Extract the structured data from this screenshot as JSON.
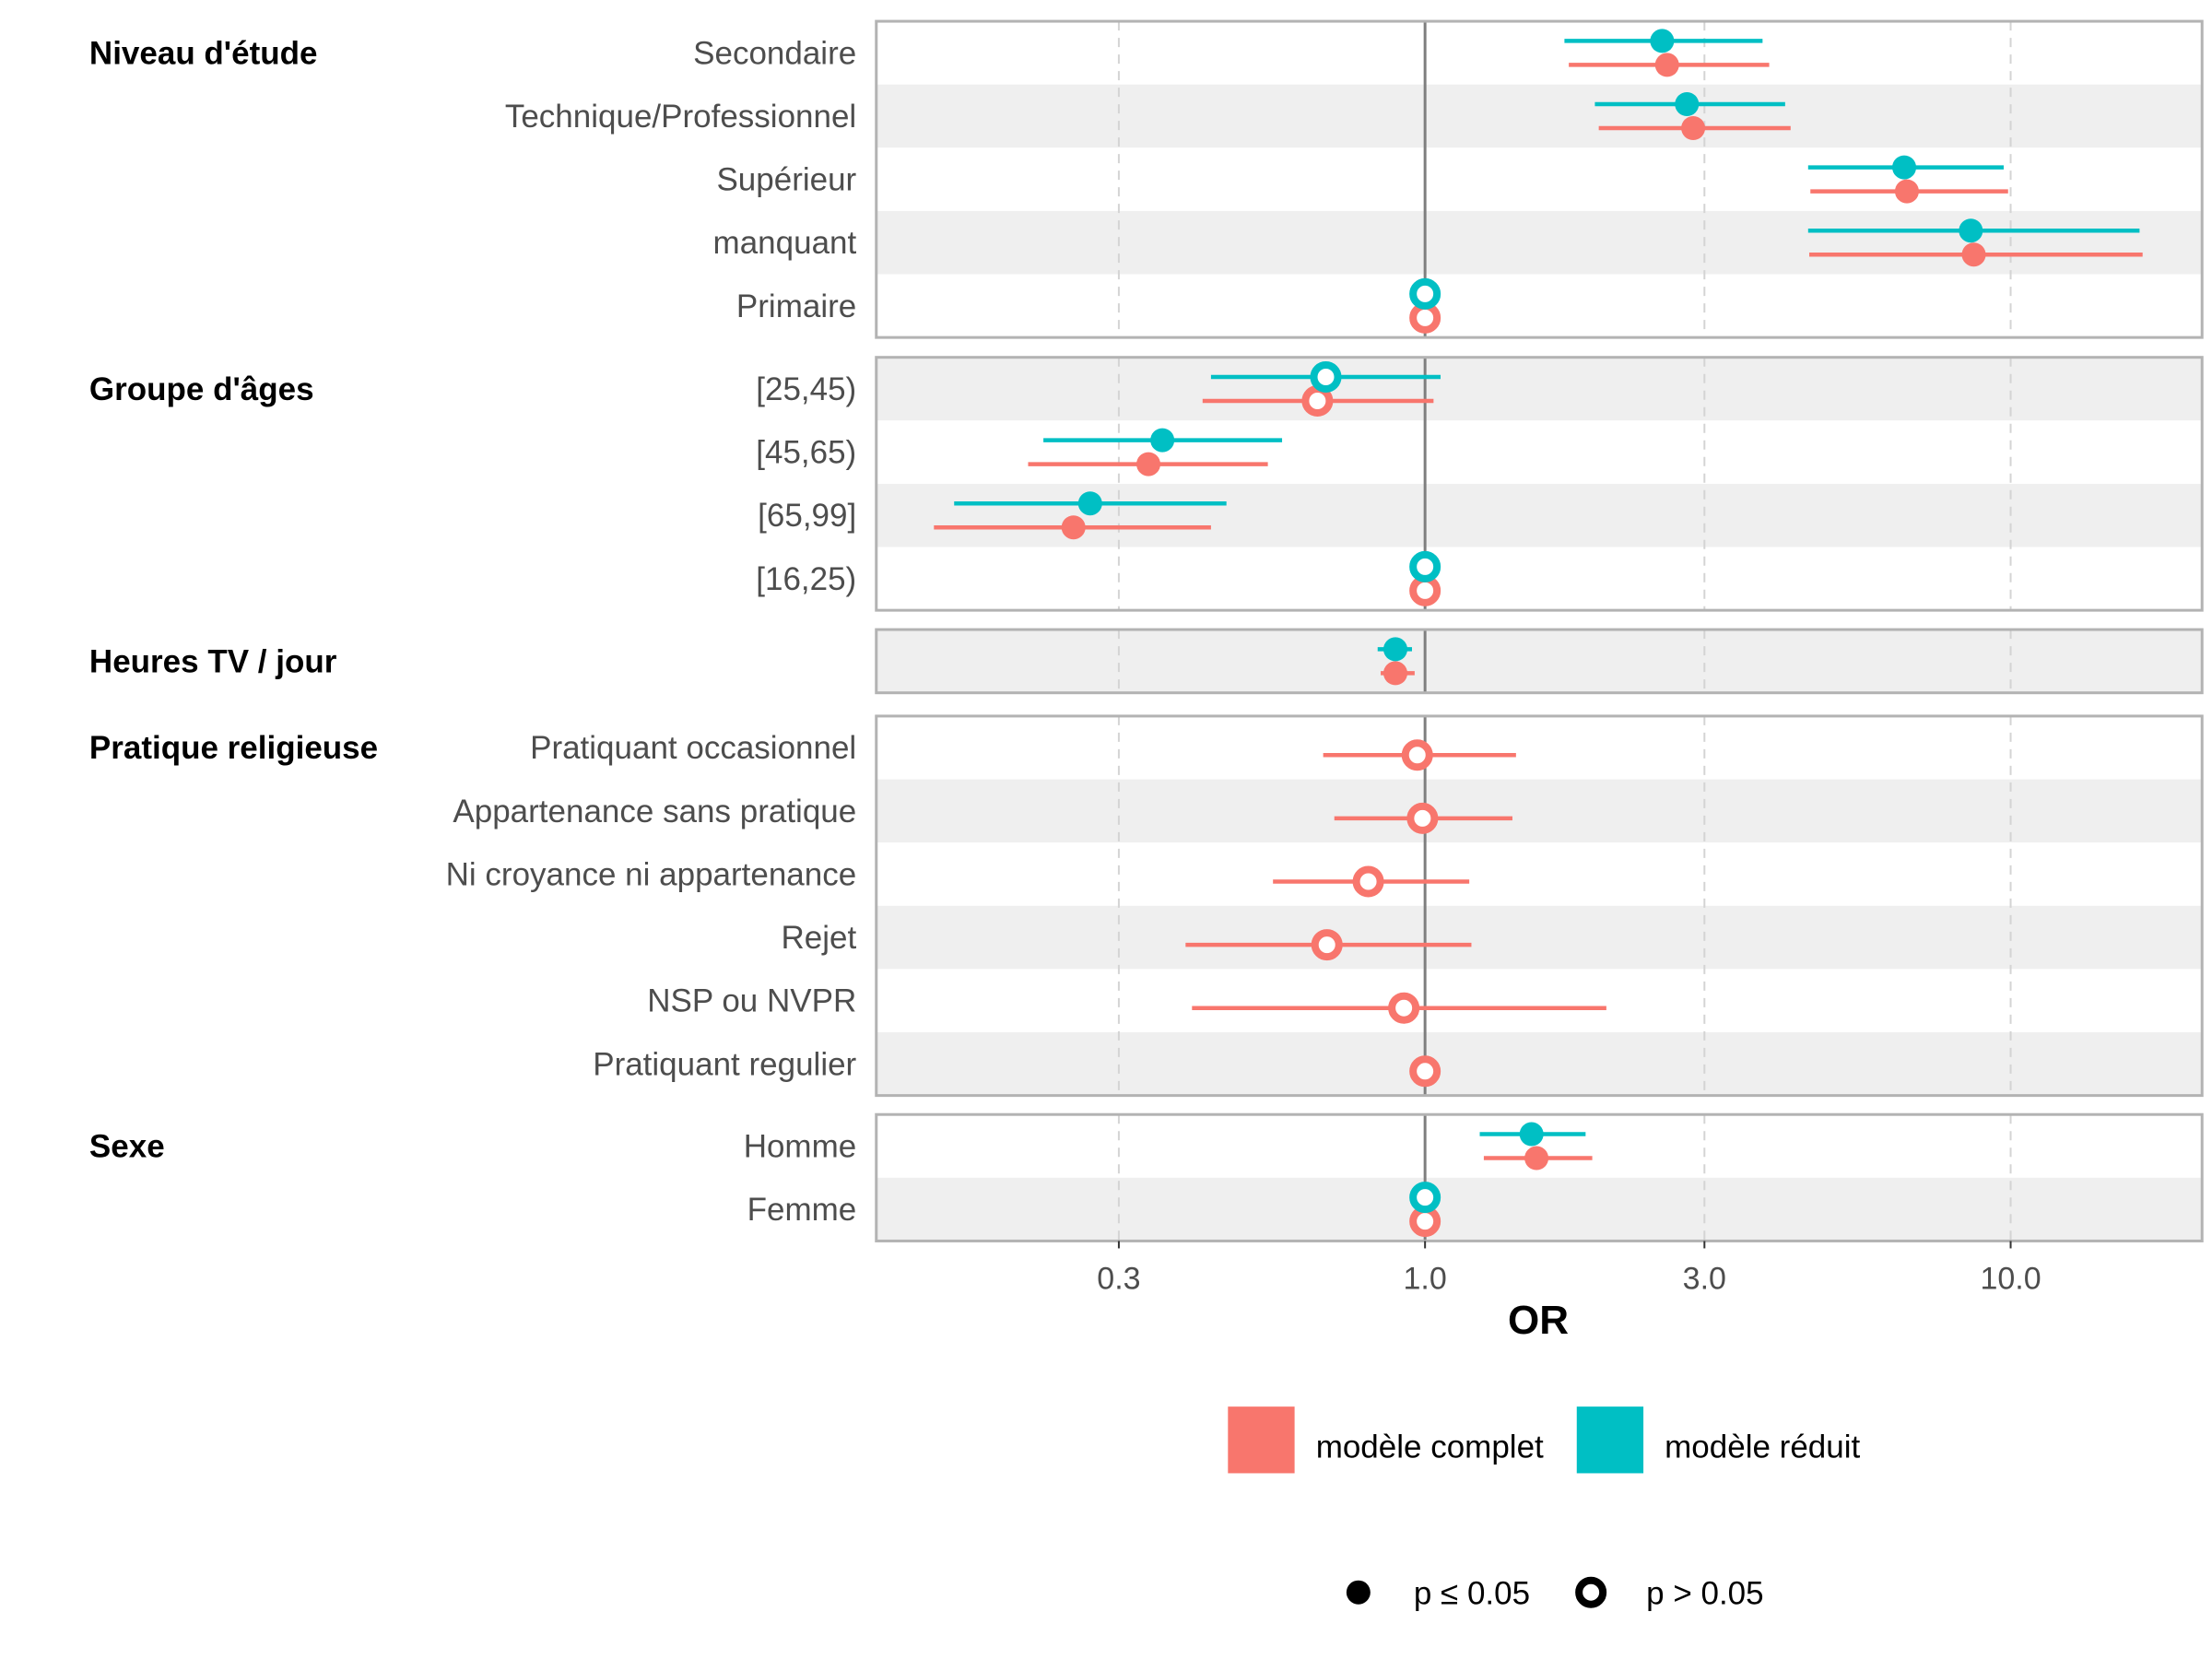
{
  "chart_data": {
    "type": "forest",
    "title": "",
    "xlabel": "OR",
    "ylabel": "",
    "xscale": "log10",
    "xlim": [
      0.12,
      20
    ],
    "xticks": [
      0.3,
      1.0,
      3.0,
      10.0
    ],
    "xtick_labels": [
      "0.3",
      "1.0",
      "3.0",
      "10.0"
    ],
    "reference_line": 1.0,
    "grid": "vertical dashed at major ticks",
    "series": [
      {
        "name": "modèle complet",
        "color": "#F8766D"
      },
      {
        "name": "modèle réduit",
        "color": "#00BFC4"
      }
    ],
    "legends": {
      "color": {
        "placement": "bottom",
        "entries": [
          {
            "label": "modèle complet",
            "color": "#F8766D"
          },
          {
            "label": "modèle réduit",
            "color": "#00BFC4"
          }
        ]
      },
      "shape": {
        "placement": "bottom",
        "entries": [
          {
            "label": "p ≤ 0.05",
            "shape": "filled-circle"
          },
          {
            "label": "p > 0.05",
            "shape": "open-circle"
          }
        ]
      }
    },
    "groups": [
      {
        "label": "Niveau d'étude",
        "rows": [
          {
            "label": "Secondaire",
            "reduit": {
              "or": 2.54,
              "lo": 1.73,
              "hi": 3.77,
              "sig": true
            },
            "complet": {
              "or": 2.59,
              "lo": 1.76,
              "hi": 3.87,
              "sig": true
            }
          },
          {
            "label": "Technique/Professionnel",
            "reduit": {
              "or": 2.8,
              "lo": 1.95,
              "hi": 4.12,
              "sig": true
            },
            "complet": {
              "or": 2.87,
              "lo": 1.98,
              "hi": 4.21,
              "sig": true
            }
          },
          {
            "label": "Supérieur",
            "reduit": {
              "or": 6.58,
              "lo": 4.51,
              "hi": 9.73,
              "sig": true
            },
            "complet": {
              "or": 6.65,
              "lo": 4.55,
              "hi": 9.9,
              "sig": true
            }
          },
          {
            "label": "manquant",
            "reduit": {
              "or": 8.55,
              "lo": 4.51,
              "hi": 16.6,
              "sig": true
            },
            "complet": {
              "or": 8.65,
              "lo": 4.53,
              "hi": 16.8,
              "sig": true
            }
          },
          {
            "label": "Primaire",
            "reduit": {
              "or": 1.0,
              "lo": null,
              "hi": null,
              "sig": false
            },
            "complet": {
              "or": 1.0,
              "lo": null,
              "hi": null,
              "sig": false
            }
          }
        ]
      },
      {
        "label": "Groupe d'âges",
        "rows": [
          {
            "label": "[25,45)",
            "reduit": {
              "or": 0.677,
              "lo": 0.431,
              "hi": 1.063,
              "sig": false
            },
            "complet": {
              "or": 0.655,
              "lo": 0.417,
              "hi": 1.034,
              "sig": false
            }
          },
          {
            "label": "[45,65)",
            "reduit": {
              "or": 0.356,
              "lo": 0.223,
              "hi": 0.57,
              "sig": true
            },
            "complet": {
              "or": 0.337,
              "lo": 0.21,
              "hi": 0.539,
              "sig": true
            }
          },
          {
            "label": "[65,99]",
            "reduit": {
              "or": 0.268,
              "lo": 0.157,
              "hi": 0.458,
              "sig": true
            },
            "complet": {
              "or": 0.251,
              "lo": 0.145,
              "hi": 0.431,
              "sig": true
            }
          },
          {
            "label": "[16,25)",
            "reduit": {
              "or": 1.0,
              "lo": null,
              "hi": null,
              "sig": false
            },
            "complet": {
              "or": 1.0,
              "lo": null,
              "hi": null,
              "sig": false
            }
          }
        ]
      },
      {
        "label": "Heures TV / jour",
        "rows": [
          {
            "label": "",
            "reduit": {
              "or": 0.89,
              "lo": 0.83,
              "hi": 0.95,
              "sig": true
            },
            "complet": {
              "or": 0.89,
              "lo": 0.84,
              "hi": 0.96,
              "sig": true
            }
          }
        ]
      },
      {
        "label": "Pratique religieuse",
        "rows": [
          {
            "label": "Pratiquant occasionnel",
            "reduit": null,
            "complet": {
              "or": 0.97,
              "lo": 0.67,
              "hi": 1.43,
              "sig": false
            }
          },
          {
            "label": "Appartenance sans pratique",
            "reduit": null,
            "complet": {
              "or": 0.99,
              "lo": 0.7,
              "hi": 1.41,
              "sig": false
            }
          },
          {
            "label": "Ni croyance ni appartenance",
            "reduit": null,
            "complet": {
              "or": 0.8,
              "lo": 0.55,
              "hi": 1.19,
              "sig": false
            }
          },
          {
            "label": "Rejet",
            "reduit": null,
            "complet": {
              "or": 0.68,
              "lo": 0.39,
              "hi": 1.2,
              "sig": false
            }
          },
          {
            "label": "NSP ou NVPR",
            "reduit": null,
            "complet": {
              "or": 0.92,
              "lo": 0.4,
              "hi": 2.04,
              "sig": false
            }
          },
          {
            "label": "Pratiquant regulier",
            "reduit": null,
            "complet": {
              "or": 1.0,
              "lo": null,
              "hi": null,
              "sig": false
            }
          }
        ]
      },
      {
        "label": "Sexe",
        "rows": [
          {
            "label": "Homme",
            "reduit": {
              "or": 1.52,
              "lo": 1.24,
              "hi": 1.88,
              "sig": true
            },
            "complet": {
              "or": 1.55,
              "lo": 1.26,
              "hi": 1.93,
              "sig": true
            }
          },
          {
            "label": "Femme",
            "reduit": {
              "or": 1.0,
              "lo": null,
              "hi": null,
              "sig": false
            },
            "complet": {
              "or": 1.0,
              "lo": null,
              "hi": null,
              "sig": false
            }
          }
        ]
      }
    ]
  }
}
